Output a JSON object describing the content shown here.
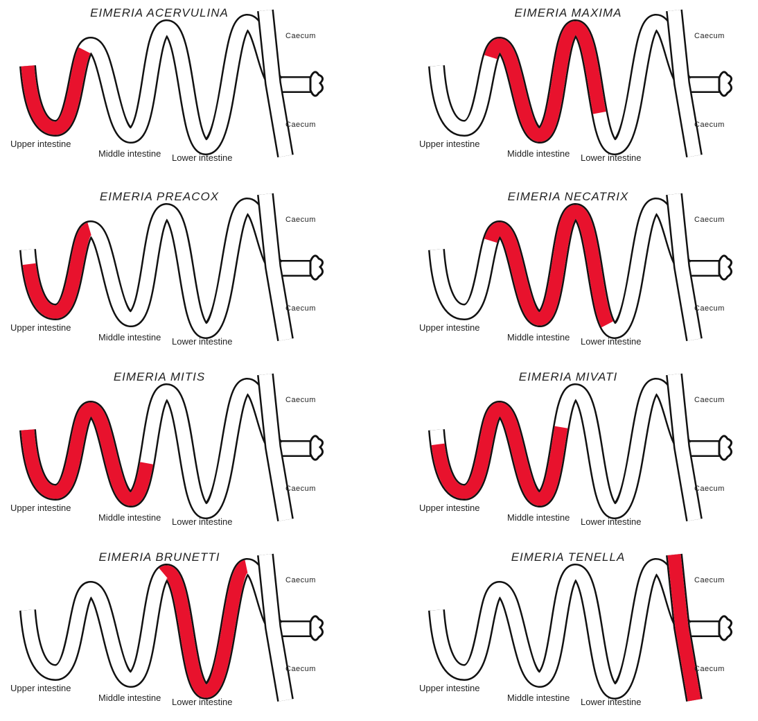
{
  "panels": [
    {
      "title": "EIMERIA ACERVULINA",
      "upper": "Upper intestine",
      "middle": "Middle intestine",
      "lower": "Lower intestine",
      "caecum_top": "Caecum",
      "caecum_bottom": "Caecum"
    },
    {
      "title": "EIMERIA MAXIMA",
      "upper": "Upper intestine",
      "middle": "Middle intestine",
      "lower": "Lower intestine",
      "caecum_top": "Caecum",
      "caecum_bottom": "Caecum"
    },
    {
      "title": "EIMERIA PREACOX",
      "upper": "Upper intestine",
      "middle": "Middle intestine",
      "lower": "Lower intestine",
      "caecum_top": "Caecum",
      "caecum_bottom": "Caecum"
    },
    {
      "title": "EIMERIA NECATRIX",
      "upper": "Upper intestine",
      "middle": "Middle intestine",
      "lower": "Lower intestine",
      "caecum_top": "Caecum",
      "caecum_bottom": "Caecum"
    },
    {
      "title": "EIMERIA MITIS",
      "upper": "Upper intestine",
      "middle": "Middle intestine",
      "lower": "Lower intestine",
      "caecum_top": "Caecum",
      "caecum_bottom": "Caecum"
    },
    {
      "title": "EIMERIA MIVATI",
      "upper": "Upper intestine",
      "middle": "Middle intestine",
      "lower": "Lower intestine",
      "caecum_top": "Caecum",
      "caecum_bottom": "Caecum"
    },
    {
      "title": "EIMERIA BRUNETTI",
      "upper": "Upper intestine",
      "middle": "Middle intestine",
      "lower": "Lower intestine",
      "caecum_top": "Caecum",
      "caecum_bottom": "Caecum"
    },
    {
      "title": "EIMERIA TENELLA",
      "upper": "Upper intestine",
      "middle": "Middle intestine",
      "lower": "Lower intestine",
      "caecum_top": "Caecum",
      "caecum_bottom": "Caecum"
    }
  ]
}
